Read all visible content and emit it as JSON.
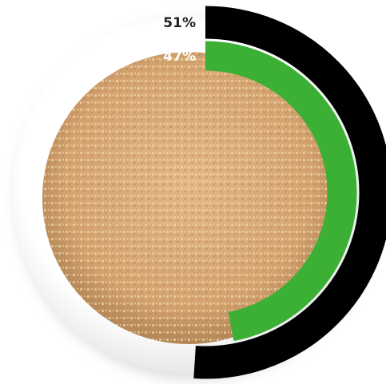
{
  "chart_data": {
    "type": "radial-bar",
    "series": [
      {
        "color": "#000000",
        "values": [
          51
        ],
        "value_labels": [
          "51%"
        ],
        "label_color": "#222222"
      },
      {
        "color": "#3cb034",
        "values": [
          47
        ],
        "value_labels": [
          "47%"
        ],
        "label_color": "#ffffff"
      }
    ],
    "ylim": [
      0,
      100
    ]
  }
}
